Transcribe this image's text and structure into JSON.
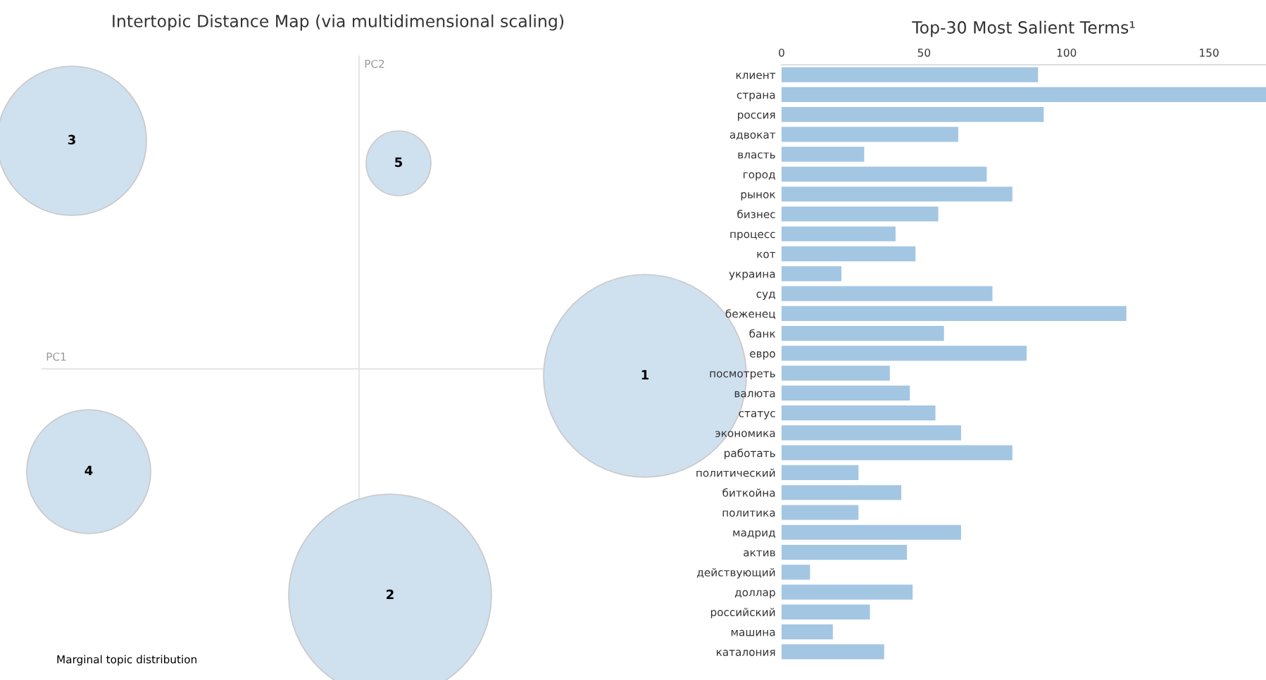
{
  "chart_data": [
    {
      "type": "other",
      "title": "Intertopic Distance Map (via multidimensional scaling)",
      "xlabel": "PC1",
      "ylabel": "PC2",
      "annotations": [
        "1",
        "2",
        "3",
        "4",
        "5",
        "Marginal topic distribution"
      ]
    },
    {
      "type": "bar",
      "orientation": "horizontal",
      "title": "Top-30 Most Salient Terms¹",
      "color": "#a3c6e3",
      "xlim": [
        0,
        170
      ],
      "xticks": [
        0,
        50,
        100,
        150
      ],
      "categories": [
        "клиент",
        "страна",
        "россия",
        "адвокат",
        "власть",
        "город",
        "рынок",
        "бизнес",
        "процесс",
        "кот",
        "украина",
        "суд",
        "беженец",
        "банк",
        "евро",
        "посмотреть",
        "валюта",
        "статус",
        "экономика",
        "работать",
        "политический",
        "биткойна",
        "политика",
        "мадрид",
        "актив",
        "действующий",
        "доллар",
        "российский",
        "машина",
        "каталония"
      ],
      "values": [
        90,
        170,
        92,
        62,
        29,
        72,
        81,
        55,
        40,
        47,
        21,
        74,
        121,
        57,
        86,
        38,
        45,
        54,
        63,
        81,
        27,
        42,
        27,
        63,
        44,
        10,
        46,
        31,
        18,
        36
      ]
    }
  ]
}
